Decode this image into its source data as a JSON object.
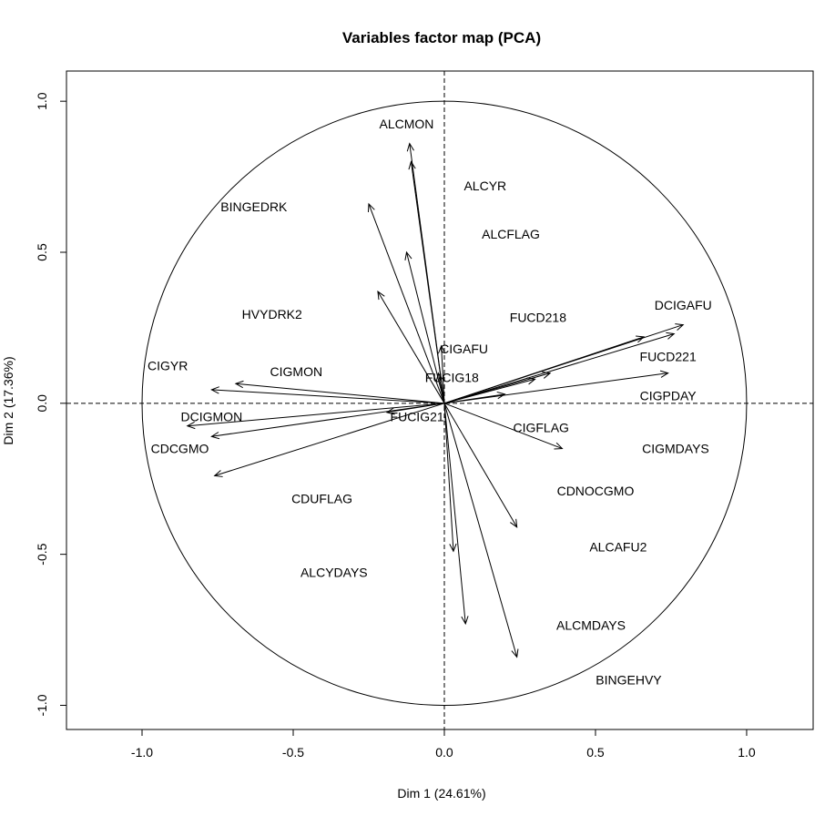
{
  "chart_data": {
    "type": "scatter",
    "title": "Variables factor map (PCA)",
    "xlabel": "Dim 1 (24.61%)",
    "ylabel": "Dim 2 (17.36%)",
    "xlim": [
      -1.25,
      1.22
    ],
    "ylim": [
      -1.08,
      1.1
    ],
    "xticks": [
      -1.0,
      -0.5,
      0.0,
      0.5,
      1.0
    ],
    "yticks": [
      -1.0,
      -0.5,
      0.0,
      0.5,
      1.0
    ],
    "xtick_labels": [
      "-1.0",
      "-0.5",
      "0.0",
      "0.5",
      "1.0"
    ],
    "ytick_labels": [
      "-1.0",
      "-0.5",
      "0.0",
      "0.5",
      "1.0"
    ],
    "unit_circle": true,
    "reference_lines": "dashed lines at x=0 and y=0",
    "arrows": [
      {
        "x": -0.115,
        "y": 0.86
      },
      {
        "x": -0.11,
        "y": 0.8
      },
      {
        "x": -0.25,
        "y": 0.66
      },
      {
        "x": -0.125,
        "y": 0.5
      },
      {
        "x": -0.22,
        "y": 0.37
      },
      {
        "x": -0.01,
        "y": 0.19
      },
      {
        "x": -0.02,
        "y": 0.1
      },
      {
        "x": 0.79,
        "y": 0.26
      },
      {
        "x": 0.66,
        "y": 0.22
      },
      {
        "x": 0.76,
        "y": 0.23
      },
      {
        "x": 0.74,
        "y": 0.1
      },
      {
        "x": 0.35,
        "y": 0.1
      },
      {
        "x": 0.3,
        "y": 0.08
      },
      {
        "x": 0.2,
        "y": 0.03
      },
      {
        "x": 0.39,
        "y": -0.15
      },
      {
        "x": 0.24,
        "y": -0.41
      },
      {
        "x": 0.03,
        "y": -0.49
      },
      {
        "x": 0.07,
        "y": -0.73
      },
      {
        "x": 0.24,
        "y": -0.84
      },
      {
        "x": -0.85,
        "y": -0.075
      },
      {
        "x": -0.77,
        "y": -0.11
      },
      {
        "x": -0.77,
        "y": 0.045
      },
      {
        "x": -0.69,
        "y": 0.065
      },
      {
        "x": -0.76,
        "y": -0.24
      },
      {
        "x": -0.19,
        "y": -0.03
      }
    ],
    "labels": [
      {
        "text": "ALCMON",
        "x": -0.125,
        "y": 0.925
      },
      {
        "text": "ALCYR",
        "x": 0.135,
        "y": 0.72
      },
      {
        "text": "BINGEDRK",
        "x": -0.63,
        "y": 0.65
      },
      {
        "text": "ALCFLAG",
        "x": 0.22,
        "y": 0.56
      },
      {
        "text": "HVYDRK2",
        "x": -0.57,
        "y": 0.295
      },
      {
        "text": "DCIGAFU",
        "x": 0.79,
        "y": 0.325
      },
      {
        "text": "FUCD218",
        "x": 0.31,
        "y": 0.285
      },
      {
        "text": "FUCD221",
        "x": 0.74,
        "y": 0.155
      },
      {
        "text": "CIGAFU",
        "x": 0.065,
        "y": 0.18
      },
      {
        "text": "CIGYR",
        "x": -0.915,
        "y": 0.125
      },
      {
        "text": "CIGMON",
        "x": -0.49,
        "y": 0.105
      },
      {
        "text": "FUCIG18",
        "x": 0.025,
        "y": 0.085
      },
      {
        "text": "CIGPDAY",
        "x": 0.74,
        "y": 0.025
      },
      {
        "text": "DCIGMON",
        "x": -0.77,
        "y": -0.045
      },
      {
        "text": "FUCIG21",
        "x": -0.09,
        "y": -0.045
      },
      {
        "text": "CIGFLAG",
        "x": 0.32,
        "y": -0.08
      },
      {
        "text": "CDCGMO",
        "x": -0.875,
        "y": -0.15
      },
      {
        "text": "CIGMDAYS",
        "x": 0.765,
        "y": -0.15
      },
      {
        "text": "CDNOCGMO",
        "x": 0.5,
        "y": -0.29
      },
      {
        "text": "CDUFLAG",
        "x": -0.405,
        "y": -0.315
      },
      {
        "text": "ALCAFU2",
        "x": 0.575,
        "y": -0.475
      },
      {
        "text": "ALCYDAYS",
        "x": -0.365,
        "y": -0.56
      },
      {
        "text": "ALCMDAYS",
        "x": 0.485,
        "y": -0.735
      },
      {
        "text": "BINGEHVY",
        "x": 0.61,
        "y": -0.915
      }
    ]
  }
}
